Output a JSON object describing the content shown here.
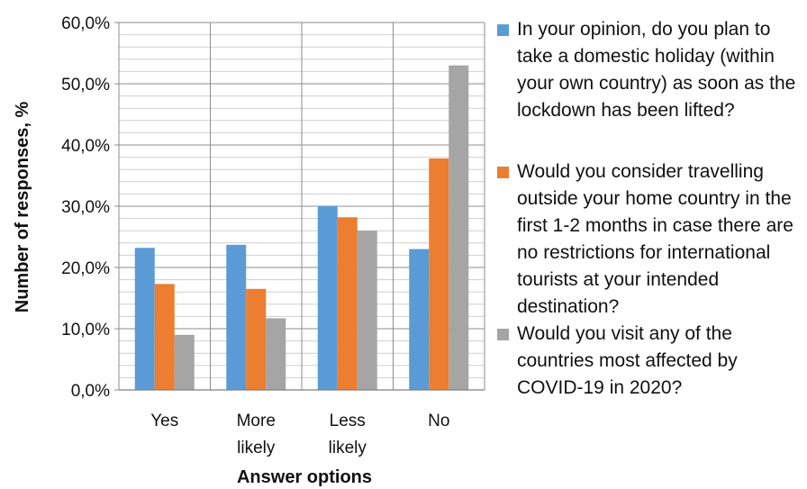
{
  "chart_data": {
    "type": "bar",
    "categories": [
      [
        "Yes"
      ],
      [
        "More",
        "likely"
      ],
      [
        "Less",
        "likely"
      ],
      [
        "No"
      ]
    ],
    "series": [
      {
        "name": "In your opinion, do you plan to take a domestic holiday (within your own country) as soon as the lockdown has been lifted?",
        "color": "#5B9BD5",
        "values": [
          23.2,
          23.7,
          30.0,
          23.0
        ]
      },
      {
        "name": "Would you consider travelling outside your home country in the first 1-2 months in case there are no restrictions for international tourists at your intended destination?",
        "color": "#ED7D31",
        "values": [
          17.3,
          16.5,
          28.2,
          37.8
        ]
      },
      {
        "name": "Would you visit any of the countries most affected by COVID-19 in 2020?",
        "color": "#A5A5A5",
        "values": [
          9.0,
          11.7,
          26.0,
          53.0
        ]
      }
    ],
    "ylim": [
      0,
      60
    ],
    "yticks": [
      "0,0%",
      "10,0%",
      "20,0%",
      "30,0%",
      "40,0%",
      "50,0%",
      "60,0%"
    ],
    "ylabel": "Number of responses, %",
    "xlabel": "Answer options",
    "grid": true,
    "legend_position": "right"
  }
}
